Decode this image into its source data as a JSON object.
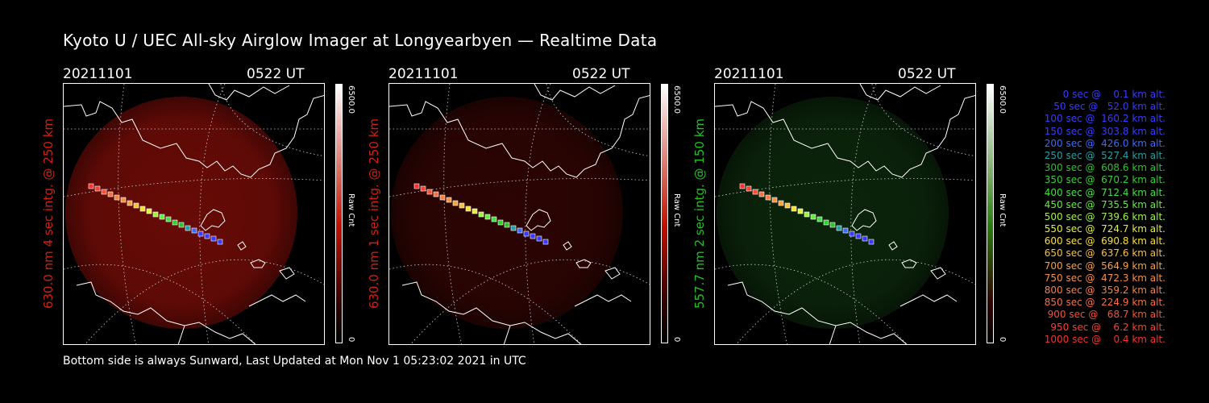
{
  "title": "Kyoto U / UEC All-sky Airglow Imager at Longyearbyen — Realtime Data",
  "footer": "Bottom side is always Sunward, Last Updated at Mon Nov  1 05:23:02 2021 in UTC",
  "panels": [
    {
      "date": "20211101",
      "time": "0522 UT",
      "ylabel": "630.0 nm 4 sec intg. @ 250 km",
      "label_color": "#d02010",
      "cbar_max": "6500.0",
      "cbar_unit": "Raw Cnt",
      "cbar_min": "0",
      "glow_color": "#7a0d08",
      "glow_opacity": 0.85,
      "cbar_top_color": "#ffffff",
      "cbar_bottom_color": "#c01000"
    },
    {
      "date": "20211101",
      "time": "0522 UT",
      "ylabel": "630.0 nm 1 sec intg. @ 250 km",
      "label_color": "#d02010",
      "cbar_max": "6500.0",
      "cbar_unit": "Raw Cnt",
      "cbar_min": "0",
      "glow_color": "#3a0604",
      "glow_opacity": 0.75,
      "cbar_top_color": "#ffffff",
      "cbar_bottom_color": "#c01000"
    },
    {
      "date": "20211101",
      "time": "0522 UT",
      "ylabel": "557.7 nm 2 sec intg. @ 150 km",
      "label_color": "#20c020",
      "cbar_max": "6500.0",
      "cbar_unit": "Raw Cnt",
      "cbar_min": "0",
      "glow_color": "#0d2a0d",
      "glow_opacity": 0.85,
      "cbar_top_color": "#ffffff",
      "cbar_bottom_color": "#2a7a10"
    }
  ],
  "legend": [
    {
      "text": "   0 sec @    0.1 km alt.",
      "color": "#3a3aff"
    },
    {
      "text": "  50 sec @   52.0 km alt.",
      "color": "#3a3aff"
    },
    {
      "text": " 100 sec @  160.2 km alt.",
      "color": "#3a3aff"
    },
    {
      "text": " 150 sec @  303.8 km alt.",
      "color": "#3a3aff"
    },
    {
      "text": " 200 sec @  426.0 km alt.",
      "color": "#3a6aff"
    },
    {
      "text": " 250 sec @  527.4 km alt.",
      "color": "#20a0a0"
    },
    {
      "text": " 300 sec @  608.6 km alt.",
      "color": "#30c030"
    },
    {
      "text": " 350 sec @  670.2 km alt.",
      "color": "#30d030"
    },
    {
      "text": " 400 sec @  712.4 km alt.",
      "color": "#40e040"
    },
    {
      "text": " 450 sec @  735.5 km alt.",
      "color": "#60ee40"
    },
    {
      "text": " 500 sec @  739.6 km alt.",
      "color": "#a0f040"
    },
    {
      "text": " 550 sec @  724.7 km alt.",
      "color": "#e0f040"
    },
    {
      "text": " 600 sec @  690.8 km alt.",
      "color": "#f8e030"
    },
    {
      "text": " 650 sec @  637.6 km alt.",
      "color": "#f8c040"
    },
    {
      "text": " 700 sec @  564.9 km alt.",
      "color": "#f8a040"
    },
    {
      "text": " 750 sec @  472.3 km alt.",
      "color": "#f89040"
    },
    {
      "text": " 800 sec @  359.2 km alt.",
      "color": "#f88040"
    },
    {
      "text": " 850 sec @  224.9 km alt.",
      "color": "#f87040"
    },
    {
      "text": " 900 sec @   68.7 km alt.",
      "color": "#f85030"
    },
    {
      "text": " 950 sec @    6.2 km alt.",
      "color": "#f84030"
    },
    {
      "text": "1000 sec @    0.4 km alt.",
      "color": "#f83030"
    }
  ]
}
